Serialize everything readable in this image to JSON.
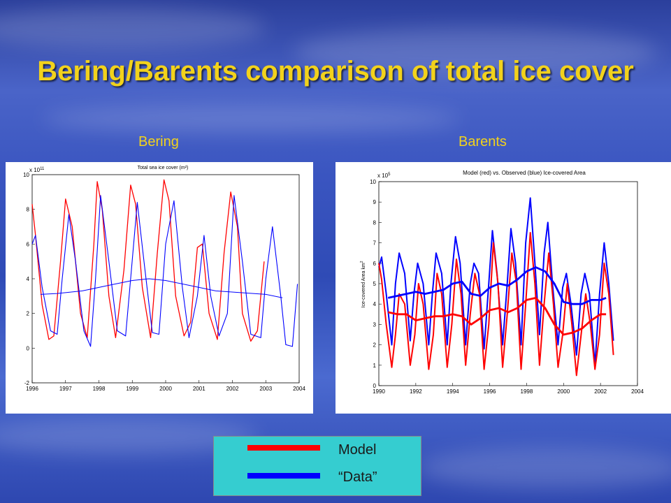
{
  "slide": {
    "title": "Bering/Barents comparison of total ice cover",
    "left_label": "Bering",
    "right_label": "Barents"
  },
  "legend": {
    "items": [
      {
        "label": "Model",
        "color": "#ff0000"
      },
      {
        "label": "“Data”",
        "color": "#0000ff"
      }
    ]
  },
  "chart_data": [
    {
      "type": "line",
      "title": "Total sea ice cover (m²)",
      "exponent_label": "x 10",
      "exponent_power": "11",
      "xlim": [
        1996,
        2004
      ],
      "ylim": [
        -2,
        10
      ],
      "xticks": [
        1996,
        1997,
        1998,
        1999,
        2000,
        2001,
        2002,
        2003,
        2004
      ],
      "yticks": [
        -2,
        0,
        2,
        4,
        6,
        8,
        10
      ],
      "grid": false,
      "series": [
        {
          "color": "#ff0000",
          "x": [
            1996.0,
            1996.1,
            1996.3,
            1996.5,
            1996.65,
            1996.85,
            1997.0,
            1997.2,
            1997.45,
            1997.65,
            1997.85,
            1997.95,
            1998.1,
            1998.3,
            1998.5,
            1998.75,
            1998.95,
            1999.1,
            1999.3,
            1999.55,
            1999.75,
            1999.95,
            2000.1,
            2000.3,
            2000.55,
            2000.75,
            2000.95,
            2001.1,
            2001.3,
            2001.55,
            2001.75,
            2001.95,
            2002.15,
            2002.3,
            2002.55,
            2002.75,
            2002.95
          ],
          "y": [
            8.3,
            6.5,
            2.5,
            0.5,
            0.7,
            5.0,
            8.6,
            7.0,
            2.0,
            0.6,
            6.0,
            9.6,
            8.0,
            3.0,
            0.6,
            4.5,
            9.4,
            8.3,
            3.5,
            0.6,
            5.5,
            9.7,
            8.5,
            3.0,
            0.7,
            1.5,
            5.8,
            6.0,
            2.0,
            0.5,
            5.5,
            9.0,
            7.0,
            2.0,
            0.4,
            1.0,
            5.0
          ]
        },
        {
          "color": "#0000ff",
          "x": [
            1996.0,
            1996.1,
            1996.3,
            1996.55,
            1996.75,
            1996.9,
            1997.1,
            1997.3,
            1997.55,
            1997.75,
            1997.9,
            1998.05,
            1998.3,
            1998.55,
            1998.8,
            1998.95,
            1999.15,
            1999.35,
            1999.6,
            1999.8,
            2000.0,
            2000.25,
            2000.5,
            2000.7,
            2000.95,
            2001.15,
            2001.35,
            2001.6,
            2001.85,
            2002.05,
            2002.3,
            2002.55,
            2002.85,
            2003.0,
            2003.2,
            2003.45,
            2003.6,
            2003.8,
            2003.95
          ],
          "y": [
            6.0,
            6.5,
            3.5,
            1.0,
            0.8,
            4.0,
            7.7,
            5.0,
            1.0,
            0.1,
            4.0,
            8.8,
            5.0,
            1.0,
            0.7,
            4.0,
            8.4,
            5.0,
            0.9,
            0.8,
            6.0,
            8.5,
            3.5,
            0.6,
            3.0,
            6.5,
            3.0,
            0.7,
            2.0,
            8.8,
            5.0,
            0.8,
            0.6,
            4.0,
            7.0,
            3.0,
            0.2,
            0.1,
            3.7
          ]
        },
        {
          "color": "#0000ff",
          "x": [
            1996.25,
            1996.75,
            1997.5,
            1998.25,
            1999.0,
            1999.5,
            2000.0,
            2000.75,
            2001.5,
            2002.25,
            2003.0,
            2003.5
          ],
          "y": [
            3.1,
            3.15,
            3.3,
            3.6,
            3.9,
            4.0,
            3.9,
            3.6,
            3.3,
            3.2,
            3.1,
            2.9
          ]
        }
      ]
    },
    {
      "type": "line",
      "title": "Model (red) vs. Observed (blue) Ice-covered Area",
      "exponent_label": "x 10",
      "exponent_power": "5",
      "ylabel": "Ice-covered Area km",
      "ylabel_power": "2",
      "xlim": [
        1990,
        2004
      ],
      "ylim": [
        0,
        10
      ],
      "xticks": [
        1990,
        1992,
        1994,
        1996,
        1998,
        2000,
        2002,
        2004
      ],
      "yticks": [
        0,
        1,
        2,
        3,
        4,
        5,
        6,
        7,
        8,
        9,
        10
      ],
      "grid": false,
      "series": [
        {
          "color": "#0000ff",
          "x": [
            1990.0,
            1990.15,
            1990.4,
            1990.7,
            1990.9,
            1991.1,
            1991.4,
            1991.7,
            1991.9,
            1992.1,
            1992.4,
            1992.7,
            1992.9,
            1993.1,
            1993.4,
            1993.7,
            1993.9,
            1994.15,
            1994.4,
            1994.7,
            1994.95,
            1995.15,
            1995.4,
            1995.7,
            1995.95,
            1996.15,
            1996.4,
            1996.7,
            1996.95,
            1997.15,
            1997.4,
            1997.7,
            1997.95,
            1998.2,
            1998.45,
            1998.7,
            1998.95,
            1999.15,
            1999.4,
            1999.7,
            1999.95,
            2000.15,
            2000.4,
            2000.7,
            2000.95,
            2001.15,
            2001.4,
            2001.7,
            2001.95,
            2002.2,
            2002.45,
            2002.7
          ],
          "y": [
            5.8,
            6.3,
            4.5,
            2.0,
            5.0,
            6.5,
            5.5,
            2.2,
            4.5,
            6.0,
            5.0,
            2.0,
            4.5,
            6.5,
            5.5,
            2.0,
            5.0,
            7.3,
            6.0,
            2.0,
            5.0,
            6.0,
            5.5,
            1.8,
            5.0,
            7.6,
            5.5,
            2.0,
            5.0,
            7.7,
            6.0,
            2.0,
            7.0,
            9.2,
            6.0,
            2.5,
            6.5,
            8.0,
            5.0,
            2.0,
            4.8,
            5.5,
            4.0,
            1.5,
            4.5,
            5.5,
            4.5,
            1.0,
            4.5,
            7.0,
            5.0,
            2.2
          ]
        },
        {
          "color": "#ff0000",
          "x": [
            1990.0,
            1990.15,
            1990.4,
            1990.7,
            1990.9,
            1991.1,
            1991.4,
            1991.7,
            1991.95,
            1992.15,
            1992.4,
            1992.7,
            1992.95,
            1993.15,
            1993.4,
            1993.7,
            1993.95,
            1994.2,
            1994.45,
            1994.7,
            1994.95,
            1995.2,
            1995.45,
            1995.7,
            1995.95,
            1996.2,
            1996.45,
            1996.7,
            1996.95,
            1997.2,
            1997.45,
            1997.7,
            1997.95,
            1998.2,
            1998.45,
            1998.7,
            1998.95,
            1999.2,
            1999.45,
            1999.7,
            1999.95,
            2000.2,
            2000.45,
            2000.7,
            2000.95,
            2001.2,
            2001.45,
            2001.7,
            2001.95,
            2002.2,
            2002.45,
            2002.7
          ],
          "y": [
            6.0,
            5.2,
            3.0,
            0.9,
            2.5,
            4.5,
            4.0,
            1.0,
            2.5,
            5.0,
            4.0,
            0.8,
            2.5,
            5.5,
            4.5,
            0.9,
            3.0,
            6.2,
            4.5,
            1.0,
            3.5,
            5.5,
            4.5,
            0.8,
            3.0,
            7.0,
            5.0,
            0.9,
            3.5,
            6.5,
            5.0,
            0.8,
            4.0,
            7.5,
            5.0,
            1.0,
            4.0,
            6.5,
            4.0,
            0.9,
            2.5,
            5.0,
            3.0,
            0.5,
            2.5,
            4.5,
            3.0,
            0.8,
            2.5,
            6.0,
            4.5,
            1.5
          ]
        },
        {
          "color": "#0000ff",
          "x": [
            1990.5,
            1991.0,
            1991.5,
            1992.0,
            1992.5,
            1993.0,
            1993.5,
            1994.0,
            1994.5,
            1995.0,
            1995.5,
            1996.0,
            1996.5,
            1997.0,
            1997.5,
            1998.0,
            1998.5,
            1999.0,
            1999.5,
            2000.0,
            2000.5,
            2001.0,
            2001.5,
            2002.0,
            2002.3
          ],
          "y": [
            4.3,
            4.4,
            4.5,
            4.6,
            4.5,
            4.6,
            4.7,
            5.0,
            5.1,
            4.5,
            4.4,
            4.8,
            5.0,
            4.9,
            5.2,
            5.6,
            5.8,
            5.6,
            5.0,
            4.1,
            4.0,
            4.0,
            4.2,
            4.2,
            4.3
          ]
        },
        {
          "color": "#ff0000",
          "x": [
            1990.5,
            1991.0,
            1991.5,
            1992.0,
            1992.5,
            1993.0,
            1993.5,
            1994.0,
            1994.5,
            1995.0,
            1995.5,
            1996.0,
            1996.5,
            1997.0,
            1997.5,
            1998.0,
            1998.5,
            1999.0,
            1999.5,
            2000.0,
            2000.5,
            2001.0,
            2001.5,
            2002.0,
            2002.3
          ],
          "y": [
            3.6,
            3.5,
            3.5,
            3.2,
            3.3,
            3.4,
            3.4,
            3.5,
            3.4,
            3.0,
            3.3,
            3.7,
            3.8,
            3.6,
            3.8,
            4.2,
            4.3,
            3.8,
            3.0,
            2.5,
            2.6,
            2.8,
            3.2,
            3.5,
            3.5
          ]
        }
      ]
    }
  ]
}
